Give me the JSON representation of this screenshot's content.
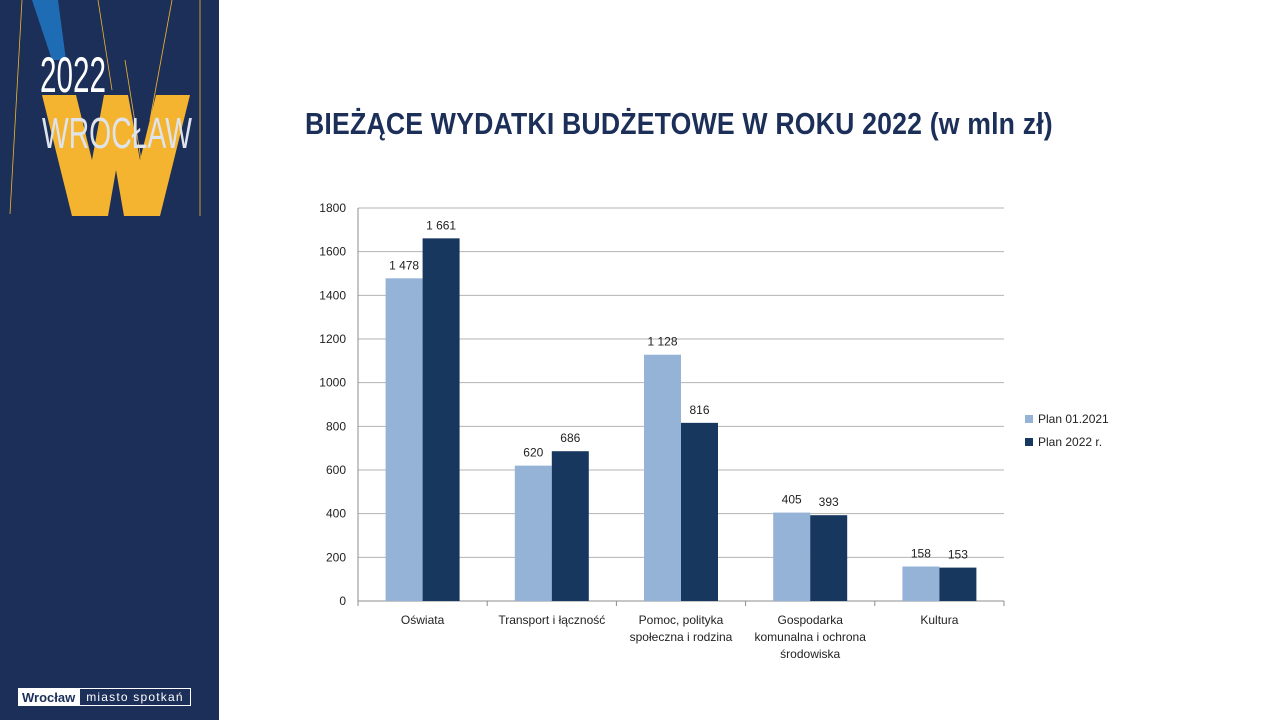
{
  "sidebar": {
    "year": "2022",
    "city": "WROCŁAW",
    "letter": "W",
    "brand": "Wrocław",
    "tagline": "miasto spotkań"
  },
  "title": "BIEŻĄCE WYDATKI BUDŻETOWE W ROKU 2022 (w mln zł)",
  "colors": {
    "sidebar_bg": "#1c2f59",
    "accent_yellow": "#f4b42f",
    "accent_blue": "#1e6cb4",
    "series1": "#95b3d7",
    "series2": "#17375e"
  },
  "chart_data": {
    "type": "bar",
    "categories": [
      [
        "Oświata"
      ],
      [
        "Transport i łączność"
      ],
      [
        "Pomoc, polityka",
        "społeczna i rodzina"
      ],
      [
        "Gospodarka",
        "komunalna i ochrona",
        "środowiska"
      ],
      [
        "Kultura"
      ]
    ],
    "series": [
      {
        "name": "Plan 01.2021",
        "values": [
          1478,
          620,
          1128,
          405,
          158
        ],
        "labels": [
          "1 478",
          "620",
          "1 128",
          "405",
          "158"
        ],
        "color": "#95b3d7"
      },
      {
        "name": "Plan 2022 r.",
        "values": [
          1661,
          686,
          816,
          393,
          153
        ],
        "labels": [
          "1 661",
          "686",
          "816",
          "393",
          "153"
        ],
        "color": "#17375e"
      }
    ],
    "yticks": [
      "0",
      "200",
      "400",
      "600",
      "800",
      "1000",
      "1200",
      "1400",
      "1600",
      "1800"
    ],
    "ylim": [
      0,
      1800
    ],
    "grid": true,
    "legend": "right"
  }
}
